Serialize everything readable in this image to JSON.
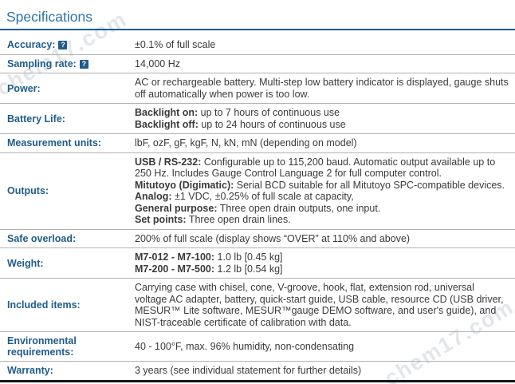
{
  "title": "Specifications",
  "watermarks": {
    "top": "chem17.com",
    "bottom": "chem17.com"
  },
  "colors": {
    "heading": "#2e76a5",
    "title_rule": "#1c5f91",
    "label": "#1f5c8b",
    "text": "#3a3a3a",
    "row_border": "#b2b2b2",
    "bottom_border": "#161616",
    "help_bg": "#1f5c8b",
    "watermark": "#ccd3da"
  },
  "help_icon_glyph": "?",
  "table": {
    "rows": [
      {
        "label": "Accuracy:",
        "help": true,
        "lines": [
          [
            {
              "t": "±0.1% of full scale"
            }
          ]
        ]
      },
      {
        "label": "Sampling rate:",
        "help": true,
        "lines": [
          [
            {
              "t": "14,000 Hz"
            }
          ]
        ]
      },
      {
        "label": "Power:",
        "lines": [
          [
            {
              "t": "AC or rechargeable battery. Multi-step low battery indicator is displayed, gauge shuts off automatically when power is too low."
            }
          ]
        ]
      },
      {
        "label": "Battery Life:",
        "lines": [
          [
            {
              "t": "Backlight on:",
              "b": true
            },
            {
              "t": " up to 7 hours of continuous use"
            }
          ],
          [
            {
              "t": "Backlight off:",
              "b": true
            },
            {
              "t": " up to 24 hours of continuous use"
            }
          ]
        ]
      },
      {
        "label": "Measurement units:",
        "lines": [
          [
            {
              "t": "lbF, ozF, gF, kgF, N, kN, mN (depending on model)"
            }
          ]
        ]
      },
      {
        "label": "Outputs:",
        "lines": [
          [
            {
              "t": "USB / RS-232:",
              "b": true
            },
            {
              "t": " Configurable up to 115,200 baud. Automatic output available up to 250 Hz. Includes Gauge Control Language 2 for full computer control."
            }
          ],
          [
            {
              "t": "Mitutoyo (Digimatic):",
              "b": true
            },
            {
              "t": " Serial BCD suitable for all Mitutoyo SPC-compatible devices."
            }
          ],
          [
            {
              "t": "Analog:",
              "b": true
            },
            {
              "t": " ±1 VDC, ±0.25% of full scale at capacity,"
            }
          ],
          [
            {
              "t": "General purpose:",
              "b": true
            },
            {
              "t": " Three open drain outputs, one input."
            }
          ],
          [
            {
              "t": "Set points:",
              "b": true
            },
            {
              "t": " Three open drain lines."
            }
          ]
        ]
      },
      {
        "label": "Safe overload:",
        "lines": [
          [
            {
              "t": "200% of full scale (display shows “OVER” at 110% and above)"
            }
          ]
        ]
      },
      {
        "label": "Weight:",
        "lines": [
          [
            {
              "t": "M7-012 - M7-100:",
              "b": true
            },
            {
              "t": " 1.0 lb [0.45 kg]"
            }
          ],
          [
            {
              "t": "M7-200 - M7-500:",
              "b": true
            },
            {
              "t": " 1.2 lb [0.54 kg]"
            }
          ]
        ]
      },
      {
        "label": "Included items:",
        "lines": [
          [
            {
              "t": "Carrying case with chisel, cone, V-groove, hook, flat, extension rod, universal voltage AC adapter, battery, quick-start guide, USB cable, resource CD (USB driver, MESUR™ Lite software, MESUR™gauge DEMO software, and user's guide), and NIST-traceable certificate of calibration with data."
            }
          ]
        ]
      },
      {
        "label": "Environmental requirements:",
        "lines": [
          [
            {
              "t": "40 - 100°F, max. 96% humidity, non-condensating"
            }
          ]
        ]
      },
      {
        "label": "Warranty:",
        "lines": [
          [
            {
              "t": "3 years (see individual statement for further details)"
            }
          ]
        ]
      }
    ]
  }
}
